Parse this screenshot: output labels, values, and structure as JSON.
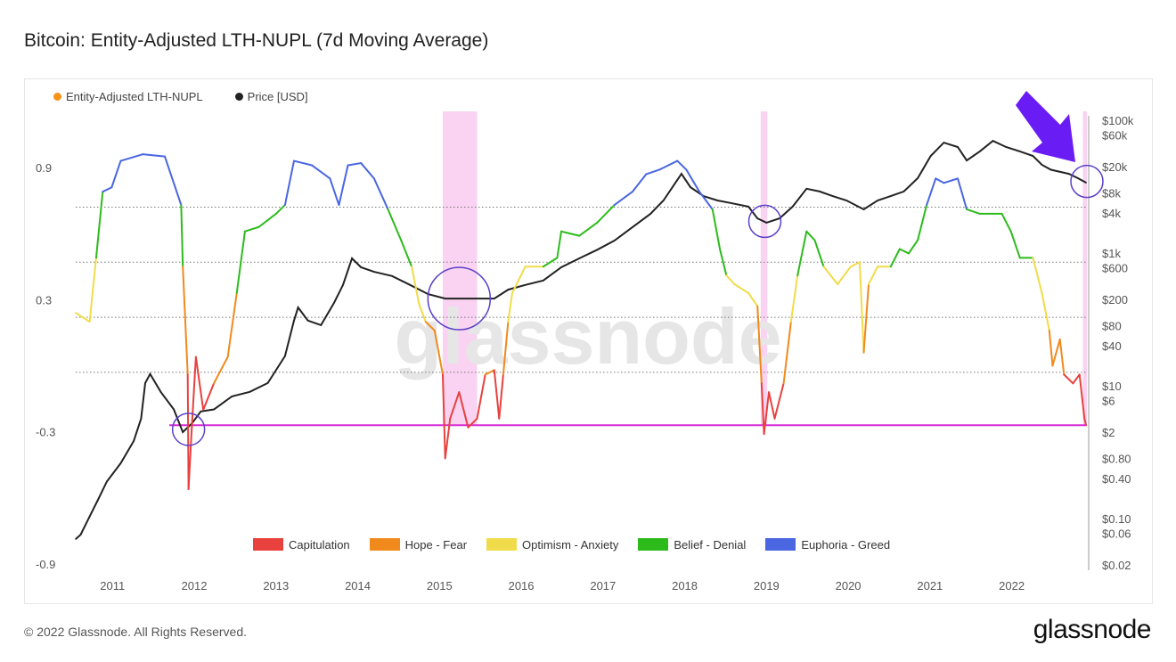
{
  "title": "Bitcoin: Entity-Adjusted LTH-NUPL (7d Moving Average)",
  "footer": "© 2022 Glassnode. All Rights Reserved.",
  "brand": "glassnode",
  "watermark": "glassnode",
  "chart_data": {
    "type": "line",
    "title": "Bitcoin: Entity-Adjusted LTH-NUPL (7d Moving Average)",
    "xlim": [
      2010.55,
      2022.92
    ],
    "x_ticks": [
      "2011",
      "2012",
      "2013",
      "2014",
      "2015",
      "2016",
      "2017",
      "2018",
      "2019",
      "2020",
      "2021",
      "2022"
    ],
    "y_left": {
      "ticks": [
        "0.9",
        "0.3",
        "-0.3",
        "-0.9"
      ],
      "ylim": [
        -0.9,
        0.9
      ]
    },
    "y_right": {
      "scale": "log",
      "ylim": [
        0.02,
        100000
      ],
      "ticks": [
        "$100k",
        "$60k",
        "$20k",
        "$8k",
        "$4k",
        "$1k",
        "$600",
        "$200",
        "$80",
        "$40",
        "$10",
        "$6",
        "$2",
        "$0.80",
        "$0.40",
        "$0.10",
        "$0.06",
        "$0.02"
      ],
      "tick_values": [
        100000,
        60000,
        20000,
        8000,
        4000,
        1000,
        600,
        200,
        80,
        40,
        10,
        6,
        2,
        0.8,
        0.4,
        0.1,
        0.06,
        0.02
      ]
    },
    "legend_position": "top-left",
    "series": [
      {
        "name": "Entity-Adjusted LTH-NUPL",
        "color": "#f7931a",
        "axis": "left",
        "x": [
          2010.55,
          2010.72,
          2010.8,
          2010.88,
          2010.99,
          2011.1,
          2011.37,
          2011.64,
          2011.84,
          2011.86,
          2011.92,
          2011.93,
          2011.97,
          2012.02,
          2012.11,
          2012.24,
          2012.41,
          2012.52,
          2012.62,
          2012.79,
          2013.0,
          2013.11,
          2013.22,
          2013.44,
          2013.66,
          2013.77,
          2013.88,
          2014.04,
          2014.2,
          2014.37,
          2014.53,
          2014.66,
          2014.75,
          2014.83,
          2014.94,
          2015.04,
          2015.07,
          2015.13,
          2015.24,
          2015.35,
          2015.46,
          2015.56,
          2015.67,
          2015.73,
          2015.78,
          2015.84,
          2015.89,
          2016.05,
          2016.27,
          2016.44,
          2016.49,
          2016.71,
          2016.93,
          2017.14,
          2017.36,
          2017.53,
          2017.69,
          2017.91,
          2018.02,
          2018.18,
          2018.34,
          2018.43,
          2018.51,
          2018.61,
          2018.78,
          2018.89,
          2018.94,
          2018.97,
          2019.03,
          2019.1,
          2019.21,
          2019.3,
          2019.38,
          2019.49,
          2019.59,
          2019.7,
          2019.87,
          2020.03,
          2020.14,
          2020.19,
          2020.25,
          2020.36,
          2020.52,
          2020.63,
          2020.74,
          2020.85,
          2020.96,
          2021.07,
          2021.17,
          2021.34,
          2021.45,
          2021.61,
          2021.77,
          2021.88,
          2021.99,
          2022.1,
          2022.26,
          2022.37,
          2022.46,
          2022.5,
          2022.59,
          2022.64,
          2022.75,
          2022.83,
          2022.89,
          2022.91
        ],
        "y": [
          0.24,
          0.2,
          0.49,
          0.79,
          0.81,
          0.93,
          0.96,
          0.95,
          0.73,
          0.45,
          -0.04,
          -0.56,
          -0.28,
          0.04,
          -0.2,
          -0.08,
          0.04,
          0.33,
          0.61,
          0.63,
          0.69,
          0.73,
          0.93,
          0.91,
          0.85,
          0.73,
          0.91,
          0.92,
          0.85,
          0.71,
          0.57,
          0.45,
          0.28,
          0.2,
          0.16,
          -0.04,
          -0.42,
          -0.24,
          -0.12,
          -0.28,
          -0.24,
          -0.04,
          -0.02,
          -0.24,
          -0.04,
          0.2,
          0.33,
          0.45,
          0.45,
          0.49,
          0.61,
          0.59,
          0.65,
          0.73,
          0.79,
          0.87,
          0.89,
          0.93,
          0.89,
          0.79,
          0.71,
          0.53,
          0.41,
          0.37,
          0.33,
          0.27,
          -0.08,
          -0.31,
          -0.12,
          -0.24,
          -0.08,
          0.2,
          0.41,
          0.61,
          0.57,
          0.45,
          0.37,
          0.45,
          0.47,
          0.06,
          0.37,
          0.45,
          0.45,
          0.53,
          0.51,
          0.57,
          0.73,
          0.85,
          0.83,
          0.85,
          0.71,
          0.69,
          0.69,
          0.69,
          0.61,
          0.49,
          0.49,
          0.33,
          0.16,
          0.0,
          0.12,
          -0.04,
          -0.08,
          -0.04,
          -0.24,
          -0.27
        ]
      },
      {
        "name": "Price [USD]",
        "color": "#222222",
        "axis": "right",
        "x": [
          2010.55,
          2010.61,
          2010.72,
          2010.83,
          2010.93,
          2011.1,
          2011.26,
          2011.35,
          2011.4,
          2011.46,
          2011.59,
          2011.75,
          2011.86,
          2011.97,
          2012.08,
          2012.24,
          2012.46,
          2012.68,
          2012.9,
          2013.11,
          2013.22,
          2013.27,
          2013.39,
          2013.55,
          2013.71,
          2013.82,
          2013.93,
          2014.04,
          2014.2,
          2014.42,
          2014.64,
          2014.86,
          2015.07,
          2015.29,
          2015.51,
          2015.67,
          2015.84,
          2016.05,
          2016.27,
          2016.49,
          2016.71,
          2016.93,
          2017.14,
          2017.36,
          2017.58,
          2017.74,
          2017.85,
          2017.96,
          2018.07,
          2018.23,
          2018.4,
          2018.56,
          2018.78,
          2018.89,
          2019.0,
          2019.16,
          2019.32,
          2019.49,
          2019.65,
          2019.81,
          2019.98,
          2020.19,
          2020.36,
          2020.52,
          2020.68,
          2020.85,
          2021.01,
          2021.17,
          2021.34,
          2021.45,
          2021.61,
          2021.77,
          2021.93,
          2022.1,
          2022.26,
          2022.37,
          2022.48,
          2022.7,
          2022.81,
          2022.91
        ],
        "y": [
          0.049,
          0.057,
          0.107,
          0.2,
          0.36,
          0.68,
          1.47,
          3.2,
          11,
          15,
          8.1,
          4.4,
          2.0,
          2.7,
          4.1,
          4.4,
          6.9,
          8.1,
          11,
          28,
          96,
          151,
          96,
          82,
          177,
          330,
          830,
          610,
          520,
          450,
          330,
          240,
          206,
          206,
          206,
          206,
          280,
          330,
          385,
          610,
          830,
          1120,
          1540,
          2440,
          3880,
          6190,
          9800,
          15600,
          9800,
          7200,
          6190,
          5670,
          5000,
          3330,
          2870,
          3330,
          5000,
          9300,
          8450,
          7200,
          6190,
          4540,
          6190,
          7200,
          8450,
          13400,
          29000,
          46000,
          39600,
          24800,
          34000,
          49000,
          39600,
          34000,
          29000,
          21300,
          18000,
          15600,
          13400,
          11500
        ]
      }
    ],
    "zones": [
      {
        "name": "Capitulation",
        "color": "#e8413e",
        "max": -0.03
      },
      {
        "name": "Hope - Fear",
        "color": "#f08a1d",
        "max": 0.22
      },
      {
        "name": "Optimism - Anxiety",
        "color": "#f0dc4a",
        "max": 0.47
      },
      {
        "name": "Belief - Denial",
        "color": "#2dbb1c",
        "max": 0.72
      },
      {
        "name": "Euphoria - Greed",
        "color": "#4a66e0",
        "max": 1
      }
    ],
    "annotations": {
      "hline": {
        "value": -0.27,
        "color": "#d52bd5"
      },
      "shaded_x": [
        [
          2015.04,
          2015.46
        ],
        [
          2018.93,
          2019.01
        ],
        [
          2022.87,
          2022.92
        ]
      ],
      "shade_color": "#f7c8ee",
      "circles": [
        {
          "x": 2011.93,
          "y_price": 2.2
        },
        {
          "x": 2015.24,
          "y_price": 206
        },
        {
          "x": 2018.98,
          "y_price": 3000
        },
        {
          "x": 2022.92,
          "y_price": 12000
        }
      ],
      "circle_color": "#5b3fc9",
      "arrow_color": "#6a1cf5"
    }
  }
}
